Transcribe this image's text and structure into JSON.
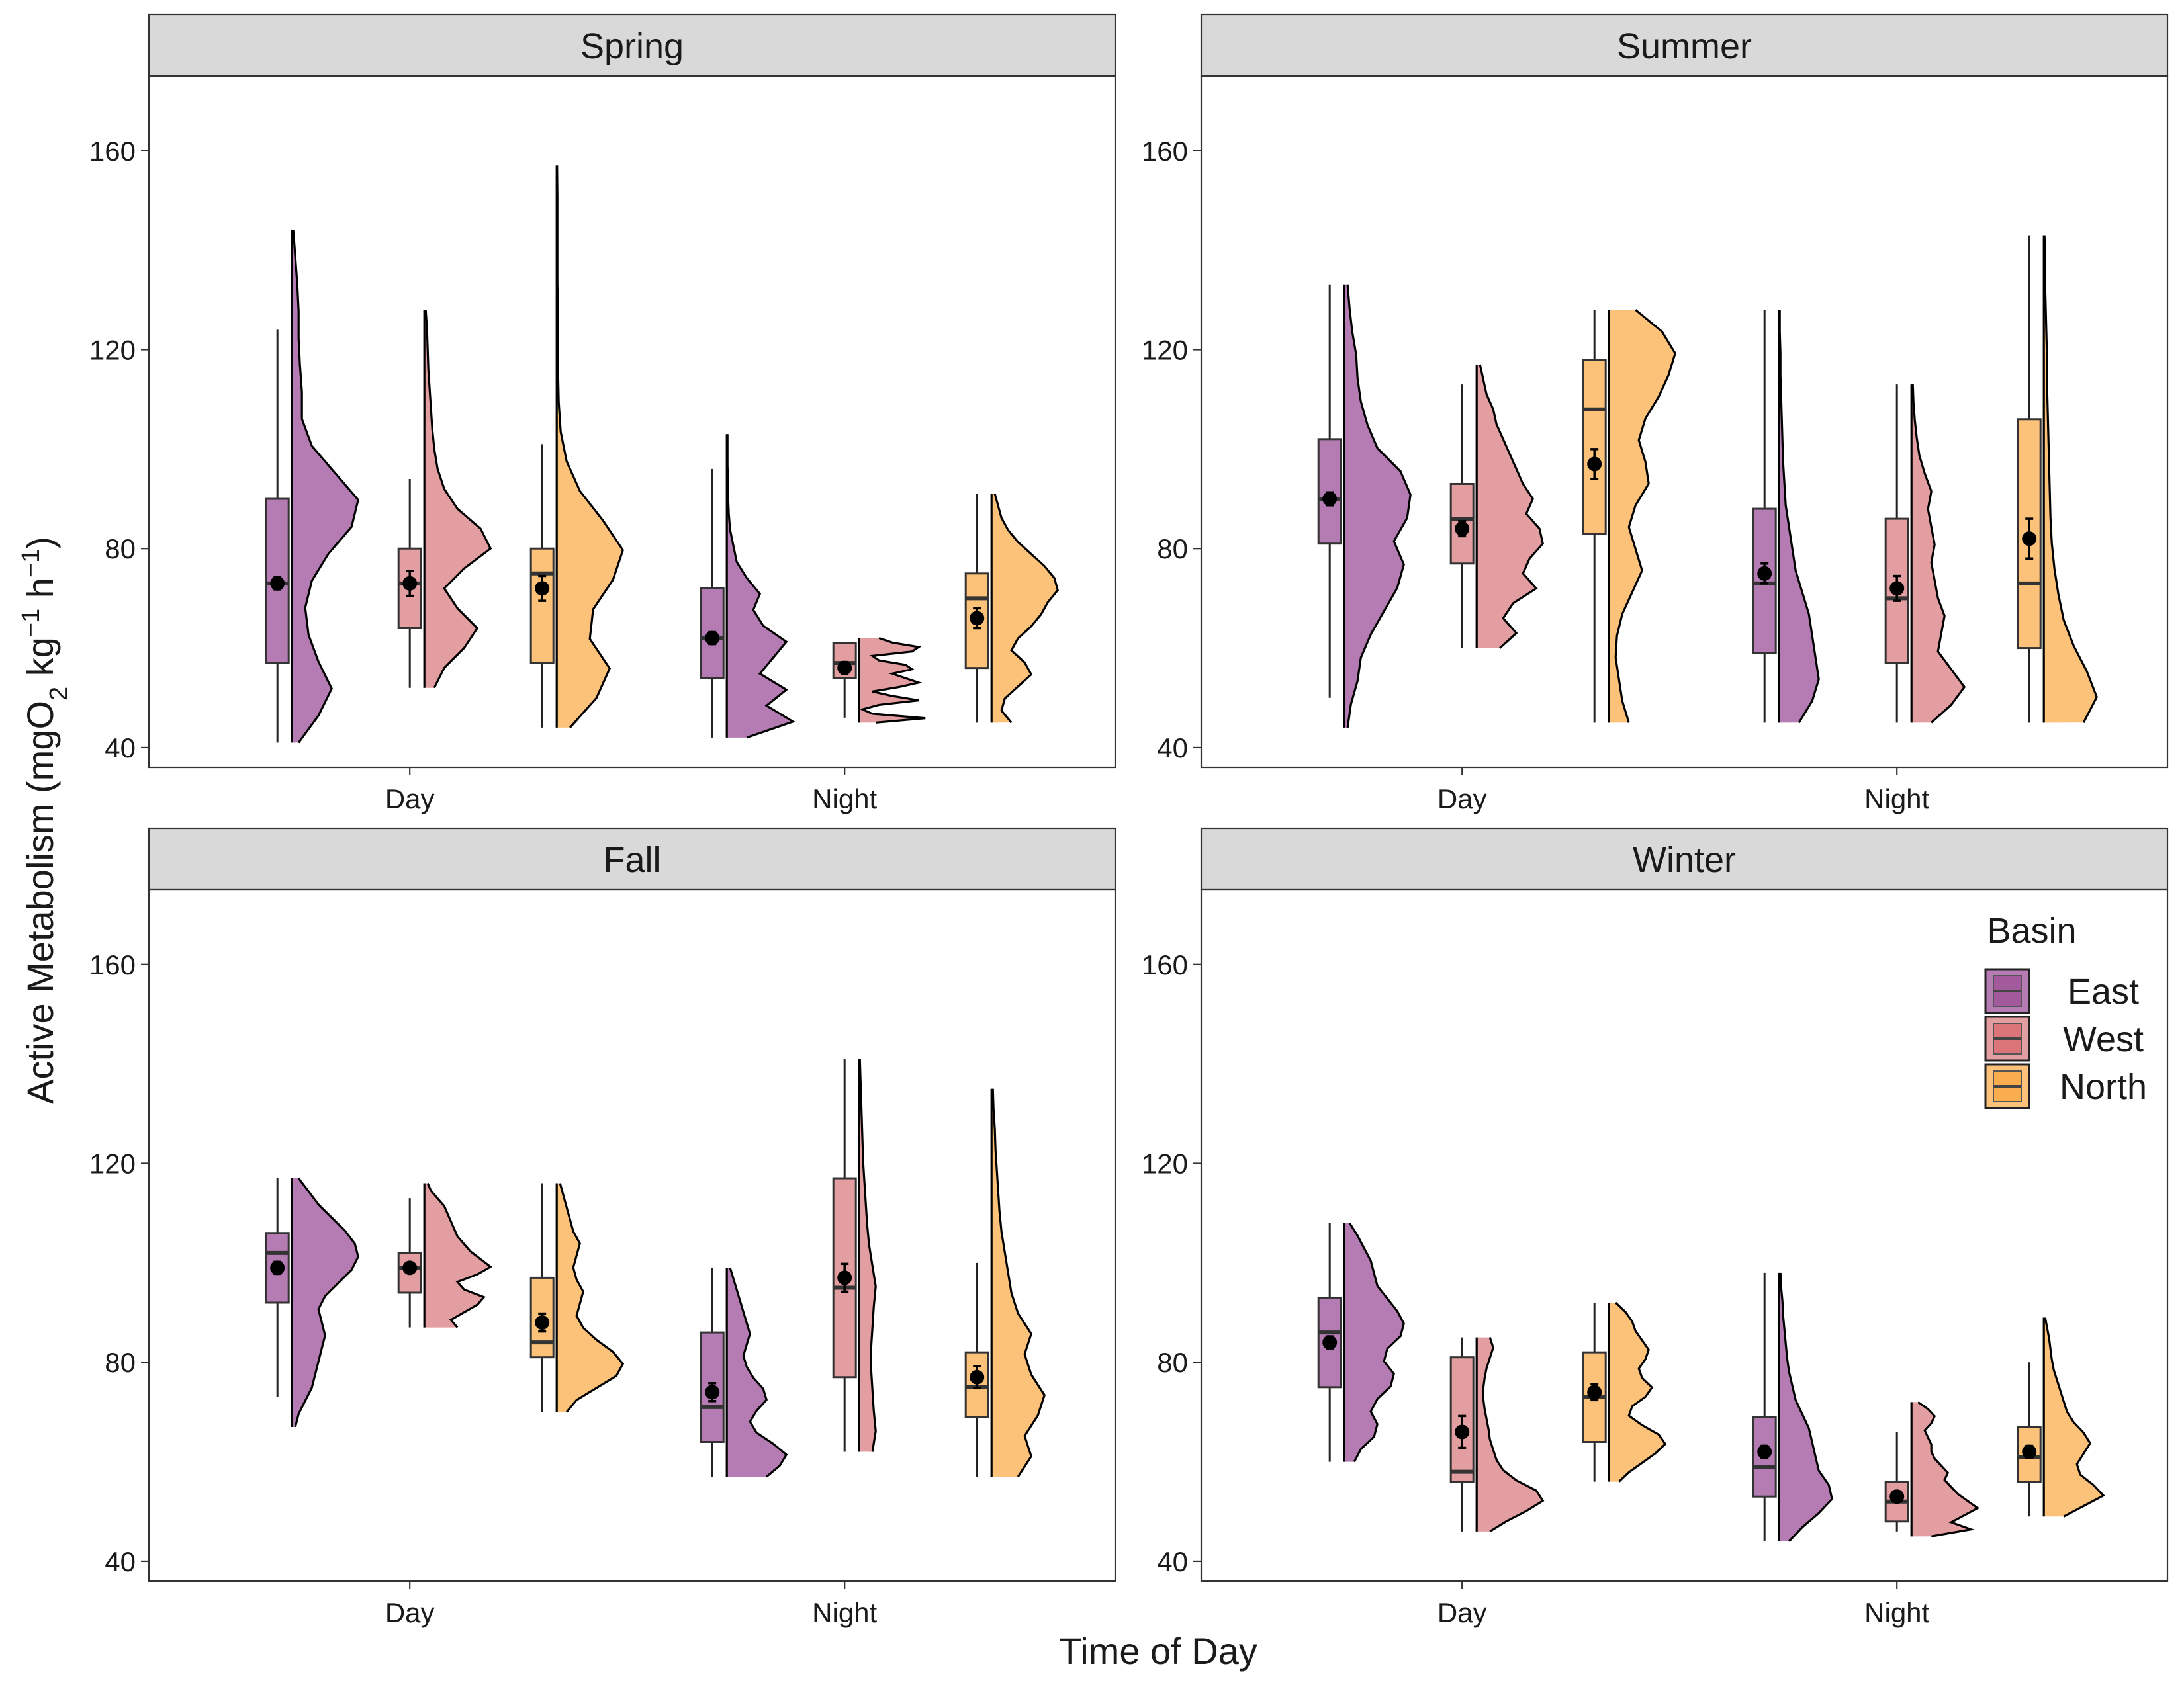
{
  "chart_data": {
    "type": "raincloud",
    "xlabel": "Time of Day",
    "ylabel_parts": [
      "Active Metabolism (mgO",
      "2",
      " kg",
      "−1",
      " h",
      "−1",
      ")"
    ],
    "ylim": [
      36,
      175
    ],
    "yticks": [
      40,
      80,
      120,
      160
    ],
    "categories": [
      "Day",
      "Night"
    ],
    "legend": {
      "title": "Basin",
      "entries": [
        {
          "name": "East",
          "color": "#9c4f96",
          "fill": "#b47cb2"
        },
        {
          "name": "West",
          "color": "#d9676c",
          "fill": "#e39ea1"
        },
        {
          "name": "North",
          "color": "#f9a640",
          "fill": "#fcc279"
        }
      ]
    },
    "panels": [
      {
        "title": "Spring",
        "groups": [
          {
            "time": "Day",
            "basin": "East",
            "min": 41,
            "q1": 57,
            "median": 73,
            "q3": 90,
            "max": 124,
            "mean": 73,
            "se": 1.2,
            "dmin": 41,
            "dmax": 144,
            "density": [
              0.1,
              0.4,
              0.6,
              0.4,
              0.25,
              0.2,
              0.3,
              0.55,
              0.9,
              1.0,
              0.65,
              0.3,
              0.15,
              0.15,
              0.12,
              0.1,
              0.1,
              0.08,
              0.05,
              0.02
            ]
          },
          {
            "time": "Day",
            "basin": "West",
            "min": 52,
            "q1": 64,
            "median": 73,
            "q3": 80,
            "max": 94,
            "mean": 73,
            "se": 2.5,
            "dmin": 52,
            "dmax": 128,
            "density": [
              0.15,
              0.3,
              0.6,
              0.8,
              0.5,
              0.3,
              0.6,
              1.0,
              0.85,
              0.5,
              0.3,
              0.2,
              0.15,
              0.12,
              0.1,
              0.08,
              0.06,
              0.05,
              0.04,
              0.02
            ]
          },
          {
            "time": "Day",
            "basin": "North",
            "min": 44,
            "q1": 57,
            "median": 75,
            "q3": 80,
            "max": 101,
            "mean": 72,
            "se": 2.5,
            "dmin": 44,
            "dmax": 157,
            "density": [
              0.2,
              0.6,
              0.8,
              0.5,
              0.55,
              0.85,
              1.0,
              0.7,
              0.35,
              0.15,
              0.06,
              0.03,
              0.02,
              0.02,
              0.02,
              0.01,
              0.01,
              0.01,
              0.01,
              0.005
            ]
          },
          {
            "time": "Night",
            "basin": "East",
            "min": 42,
            "q1": 54,
            "median": 62,
            "q3": 72,
            "max": 96,
            "mean": 62,
            "se": 1.2,
            "dmin": 42,
            "dmax": 103,
            "density": [
              0.3,
              1.0,
              0.6,
              0.9,
              0.5,
              0.7,
              0.9,
              0.55,
              0.4,
              0.5,
              0.3,
              0.15,
              0.1,
              0.05,
              0.03,
              0.02,
              0.02,
              0.01,
              0.01,
              0.01
            ]
          },
          {
            "time": "Night",
            "basin": "West",
            "min": 46,
            "q1": 54,
            "median": 57,
            "q3": 61,
            "max": 61,
            "mean": 56,
            "se": 1.2,
            "dmin": 45,
            "dmax": 62,
            "density": [
              0.25,
              1.0,
              0.2,
              0.05,
              0.3,
              0.9,
              0.5,
              0.2,
              0.6,
              0.9,
              0.7,
              0.5,
              0.8,
              0.7,
              0.3,
              0.2,
              0.8,
              0.9,
              0.5,
              0.3
            ]
          },
          {
            "time": "Night",
            "basin": "North",
            "min": 45,
            "q1": 56,
            "median": 70,
            "q3": 75,
            "max": 91,
            "mean": 66,
            "se": 2.0,
            "dmin": 45,
            "dmax": 91,
            "density": [
              0.3,
              0.15,
              0.2,
              0.4,
              0.6,
              0.5,
              0.3,
              0.4,
              0.6,
              0.75,
              0.85,
              1.0,
              0.95,
              0.8,
              0.6,
              0.4,
              0.25,
              0.15,
              0.1,
              0.05
            ]
          }
        ]
      },
      {
        "title": "Summer",
        "groups": [
          {
            "time": "Day",
            "basin": "East",
            "min": 50,
            "q1": 81,
            "median": 90,
            "q3": 102,
            "max": 133,
            "mean": 90,
            "se": 1.3,
            "dmin": 44,
            "dmax": 133,
            "density": [
              0.05,
              0.1,
              0.2,
              0.25,
              0.4,
              0.6,
              0.8,
              0.9,
              0.75,
              0.95,
              1.0,
              0.85,
              0.5,
              0.35,
              0.25,
              0.2,
              0.18,
              0.12,
              0.08,
              0.05
            ]
          },
          {
            "time": "Day",
            "basin": "West",
            "min": 60,
            "q1": 77,
            "median": 86,
            "q3": 93,
            "max": 113,
            "mean": 84,
            "se": 1.5,
            "dmin": 60,
            "dmax": 117,
            "density": [
              0.35,
              0.6,
              0.4,
              0.55,
              0.9,
              0.7,
              0.8,
              1.0,
              0.95,
              0.75,
              0.85,
              0.7,
              0.6,
              0.5,
              0.4,
              0.3,
              0.25,
              0.15,
              0.1,
              0.05
            ]
          },
          {
            "time": "Day",
            "basin": "North",
            "min": 45,
            "q1": 83,
            "median": 108,
            "q3": 118,
            "max": 128,
            "mean": 97,
            "se": 3.0,
            "dmin": 45,
            "dmax": 128,
            "density": [
              0.3,
              0.2,
              0.15,
              0.1,
              0.12,
              0.2,
              0.35,
              0.5,
              0.4,
              0.3,
              0.4,
              0.6,
              0.55,
              0.45,
              0.55,
              0.75,
              0.9,
              1.0,
              0.8,
              0.4
            ]
          },
          {
            "time": "Night",
            "basin": "East",
            "min": 45,
            "q1": 59,
            "median": 73,
            "q3": 88,
            "max": 128,
            "mean": 75,
            "se": 2.0,
            "dmin": 45,
            "dmax": 128,
            "density": [
              0.3,
              0.5,
              0.6,
              0.55,
              0.5,
              0.45,
              0.35,
              0.25,
              0.2,
              0.15,
              0.1,
              0.08,
              0.06,
              0.05,
              0.04,
              0.03,
              0.02,
              0.02,
              0.01,
              0.01
            ]
          },
          {
            "time": "Night",
            "basin": "West",
            "min": 45,
            "q1": 57,
            "median": 70,
            "q3": 86,
            "max": 113,
            "mean": 72,
            "se": 2.5,
            "dmin": 45,
            "dmax": 113,
            "density": [
              0.3,
              0.6,
              0.8,
              0.6,
              0.4,
              0.45,
              0.5,
              0.4,
              0.35,
              0.3,
              0.35,
              0.3,
              0.25,
              0.3,
              0.2,
              0.12,
              0.08,
              0.05,
              0.03,
              0.02
            ]
          },
          {
            "time": "Night",
            "basin": "North",
            "min": 45,
            "q1": 60,
            "median": 73,
            "q3": 106,
            "max": 143,
            "mean": 82,
            "se": 4.0,
            "dmin": 45,
            "dmax": 143,
            "density": [
              0.6,
              0.8,
              0.65,
              0.45,
              0.3,
              0.22,
              0.16,
              0.12,
              0.1,
              0.09,
              0.08,
              0.07,
              0.06,
              0.05,
              0.05,
              0.04,
              0.03,
              0.02,
              0.02,
              0.01
            ]
          }
        ]
      },
      {
        "title": "Fall",
        "groups": [
          {
            "time": "Day",
            "basin": "East",
            "min": 73,
            "q1": 92,
            "median": 102,
            "q3": 106,
            "max": 117,
            "mean": 99,
            "se": 1.2,
            "dmin": 67,
            "dmax": 117,
            "density": [
              0.05,
              0.1,
              0.2,
              0.3,
              0.35,
              0.4,
              0.45,
              0.5,
              0.45,
              0.4,
              0.5,
              0.7,
              0.9,
              1.0,
              0.95,
              0.8,
              0.6,
              0.4,
              0.25,
              0.1
            ]
          },
          {
            "time": "Day",
            "basin": "West",
            "min": 87,
            "q1": 94,
            "median": 99,
            "q3": 102,
            "max": 113,
            "mean": 99,
            "se": 1.0,
            "dmin": 87,
            "dmax": 116,
            "density": [
              0.5,
              0.4,
              0.6,
              0.8,
              0.9,
              0.6,
              0.5,
              0.8,
              1.0,
              0.85,
              0.7,
              0.6,
              0.5,
              0.45,
              0.4,
              0.35,
              0.3,
              0.2,
              0.1,
              0.05
            ]
          },
          {
            "time": "Day",
            "basin": "North",
            "min": 70,
            "q1": 81,
            "median": 84,
            "q3": 97,
            "max": 116,
            "mean": 88,
            "se": 1.8,
            "dmin": 70,
            "dmax": 116,
            "density": [
              0.15,
              0.3,
              0.6,
              0.9,
              1.0,
              0.85,
              0.6,
              0.4,
              0.3,
              0.35,
              0.4,
              0.3,
              0.25,
              0.3,
              0.35,
              0.25,
              0.2,
              0.15,
              0.1,
              0.05
            ]
          },
          {
            "time": "Night",
            "basin": "East",
            "min": 57,
            "q1": 64,
            "median": 71,
            "q3": 86,
            "max": 99,
            "mean": 74,
            "se": 1.8,
            "dmin": 57,
            "dmax": 99,
            "density": [
              0.6,
              0.8,
              0.9,
              0.7,
              0.45,
              0.35,
              0.45,
              0.6,
              0.55,
              0.4,
              0.3,
              0.25,
              0.3,
              0.35,
              0.3,
              0.25,
              0.2,
              0.15,
              0.1,
              0.05
            ]
          },
          {
            "time": "Night",
            "basin": "West",
            "min": 62,
            "q1": 77,
            "median": 95,
            "q3": 117,
            "max": 141,
            "mean": 97,
            "se": 2.8,
            "dmin": 62,
            "dmax": 141,
            "density": [
              0.2,
              0.25,
              0.22,
              0.2,
              0.18,
              0.18,
              0.2,
              0.22,
              0.25,
              0.2,
              0.15,
              0.12,
              0.1,
              0.08,
              0.06,
              0.05,
              0.04,
              0.03,
              0.02,
              0.01
            ]
          },
          {
            "time": "Night",
            "basin": "North",
            "min": 57,
            "q1": 69,
            "median": 75,
            "q3": 82,
            "max": 100,
            "mean": 77,
            "se": 2.2,
            "dmin": 57,
            "dmax": 135,
            "density": [
              0.4,
              0.6,
              0.5,
              0.7,
              0.8,
              0.6,
              0.5,
              0.6,
              0.4,
              0.3,
              0.25,
              0.2,
              0.15,
              0.12,
              0.1,
              0.08,
              0.06,
              0.05,
              0.03,
              0.02
            ]
          }
        ]
      },
      {
        "title": "Winter",
        "groups": [
          {
            "time": "Day",
            "basin": "East",
            "min": 60,
            "q1": 75,
            "median": 86,
            "q3": 93,
            "max": 108,
            "mean": 84,
            "se": 1.2,
            "dmin": 60,
            "dmax": 108,
            "density": [
              0.15,
              0.25,
              0.45,
              0.5,
              0.4,
              0.5,
              0.7,
              0.75,
              0.6,
              0.65,
              0.85,
              0.9,
              0.8,
              0.65,
              0.5,
              0.45,
              0.4,
              0.3,
              0.2,
              0.08
            ]
          },
          {
            "time": "Day",
            "basin": "West",
            "min": 46,
            "q1": 56,
            "median": 58,
            "q3": 81,
            "max": 85,
            "mean": 66,
            "se": 3.2,
            "dmin": 46,
            "dmax": 85,
            "density": [
              0.2,
              0.45,
              0.75,
              1.0,
              0.9,
              0.6,
              0.4,
              0.3,
              0.25,
              0.2,
              0.18,
              0.15,
              0.12,
              0.1,
              0.1,
              0.12,
              0.15,
              0.2,
              0.25,
              0.2
            ]
          },
          {
            "time": "Day",
            "basin": "North",
            "min": 56,
            "q1": 64,
            "median": 73,
            "q3": 82,
            "max": 92,
            "mean": 74,
            "se": 1.6,
            "dmin": 56,
            "dmax": 92,
            "density": [
              0.15,
              0.3,
              0.5,
              0.7,
              0.85,
              0.75,
              0.5,
              0.3,
              0.35,
              0.55,
              0.65,
              0.5,
              0.45,
              0.55,
              0.6,
              0.5,
              0.4,
              0.35,
              0.25,
              0.1
            ]
          },
          {
            "time": "Night",
            "basin": "East",
            "min": 44,
            "q1": 53,
            "median": 59,
            "q3": 69,
            "max": 98,
            "mean": 62,
            "se": 1.2,
            "dmin": 44,
            "dmax": 98,
            "density": [
              0.15,
              0.35,
              0.6,
              0.8,
              0.75,
              0.6,
              0.55,
              0.5,
              0.45,
              0.35,
              0.25,
              0.2,
              0.15,
              0.12,
              0.1,
              0.08,
              0.06,
              0.05,
              0.03,
              0.02
            ]
          },
          {
            "time": "Night",
            "basin": "West",
            "min": 46,
            "q1": 48,
            "median": 52,
            "q3": 56,
            "max": 66,
            "mean": 53,
            "se": 1.0,
            "dmin": 45,
            "dmax": 72,
            "density": [
              0.3,
              0.9,
              0.6,
              0.8,
              1.0,
              0.85,
              0.7,
              0.6,
              0.5,
              0.55,
              0.45,
              0.35,
              0.3,
              0.3,
              0.25,
              0.2,
              0.3,
              0.35,
              0.25,
              0.1
            ]
          },
          {
            "time": "Night",
            "basin": "North",
            "min": 49,
            "q1": 56,
            "median": 61,
            "q3": 67,
            "max": 80,
            "mean": 62,
            "se": 1.2,
            "dmin": 49,
            "dmax": 89,
            "density": [
              0.3,
              0.6,
              0.9,
              0.75,
              0.55,
              0.5,
              0.6,
              0.7,
              0.6,
              0.45,
              0.35,
              0.3,
              0.25,
              0.2,
              0.15,
              0.12,
              0.1,
              0.08,
              0.05,
              0.02
            ]
          }
        ]
      }
    ]
  }
}
